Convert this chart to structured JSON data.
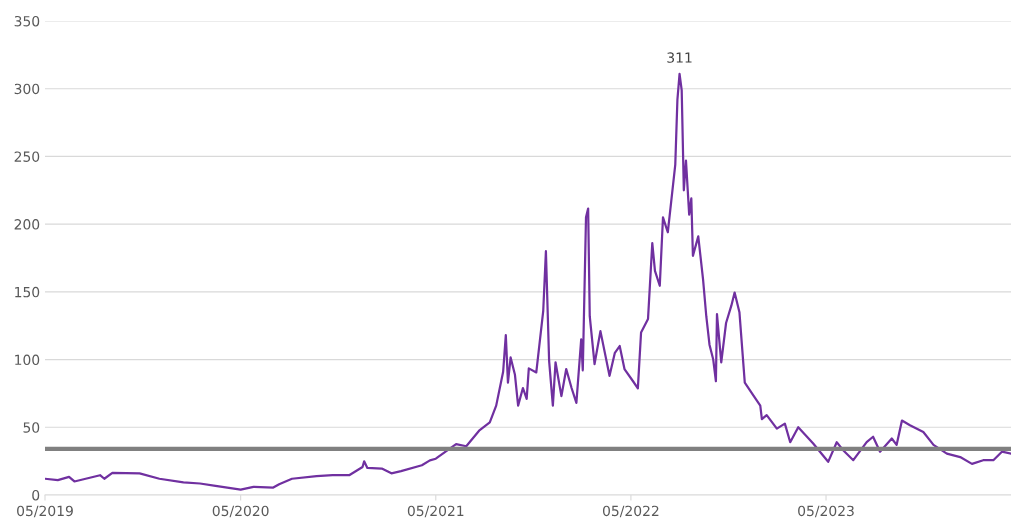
{
  "chart_data": {
    "type": "line",
    "x": [
      "2019-05-01",
      "2019-05-25",
      "2019-06-15",
      "2019-06-25",
      "2019-08-12",
      "2019-08-20",
      "2019-09-04",
      "2019-10-25",
      "2019-12-01",
      "2020-01-15",
      "2020-02-15",
      "2020-03-15",
      "2020-05-01",
      "2020-05-25",
      "2020-07-01",
      "2020-07-12",
      "2020-08-05",
      "2020-09-20",
      "2020-10-20",
      "2020-11-20",
      "2020-12-15",
      "2020-12-18",
      "2020-12-24",
      "2021-01-20",
      "2021-02-07",
      "2021-02-25",
      "2021-04-05",
      "2021-04-20",
      "2021-05-01",
      "2021-06-08",
      "2021-06-27",
      "2021-07-21",
      "2021-08-10",
      "2021-08-22",
      "2021-09-04",
      "2021-09-09",
      "2021-09-13",
      "2021-09-18",
      "2021-09-26",
      "2021-10-02",
      "2021-10-11",
      "2021-10-18",
      "2021-10-22",
      "2021-11-05",
      "2021-11-18",
      "2021-11-23",
      "2021-11-29",
      "2021-12-06",
      "2021-12-11",
      "2021-12-22",
      "2021-12-31",
      "2022-01-10",
      "2022-01-19",
      "2022-01-28",
      "2022-01-31",
      "2022-02-06",
      "2022-02-10",
      "2022-02-13",
      "2022-02-22",
      "2022-03-05",
      "2022-03-22",
      "2022-04-01",
      "2022-04-10",
      "2022-04-19",
      "2022-05-05",
      "2022-05-14",
      "2022-05-20",
      "2022-06-02",
      "2022-06-10",
      "2022-06-15",
      "2022-06-24",
      "2022-06-30",
      "2022-07-09",
      "2022-07-23",
      "2022-07-27",
      "2022-07-31",
      "2022-08-04",
      "2022-08-08",
      "2022-08-12",
      "2022-08-18",
      "2022-08-22",
      "2022-08-25",
      "2022-09-04",
      "2022-09-13",
      "2022-09-19",
      "2022-09-25",
      "2022-10-02",
      "2022-10-07",
      "2022-10-09",
      "2022-10-17",
      "2022-10-26",
      "2022-11-05",
      "2022-11-11",
      "2022-11-20",
      "2022-11-30",
      "2022-12-16",
      "2022-12-29",
      "2023-01-01",
      "2023-01-10",
      "2023-01-29",
      "2023-02-13",
      "2023-02-23",
      "2023-03-10",
      "2023-04-07",
      "2023-05-05",
      "2023-05-21",
      "2023-06-02",
      "2023-06-21",
      "2023-07-16",
      "2023-07-28",
      "2023-08-10",
      "2023-09-01",
      "2023-09-10",
      "2023-09-20",
      "2023-10-05",
      "2023-10-30",
      "2023-11-18",
      "2023-12-13",
      "2024-01-07",
      "2024-01-29",
      "2024-02-19",
      "2024-03-09",
      "2024-03-25",
      "2024-04-11"
    ],
    "series": [
      {
        "color": "#7030a0",
        "values": [
          12,
          11,
          13.4,
          10,
          14.6,
          12,
          16.3,
          16,
          12,
          9.3,
          8.5,
          6.8,
          4,
          6,
          5.5,
          8,
          12,
          14,
          14.6,
          14.6,
          20.7,
          24.9,
          20,
          19.5,
          16,
          17.6,
          22,
          25.6,
          26.8,
          37.6,
          36,
          47.5,
          53.6,
          66,
          91,
          118,
          83,
          101.6,
          89,
          66,
          79,
          71,
          93.5,
          90.5,
          136,
          180,
          99,
          66,
          98,
          73,
          93,
          79,
          68,
          115,
          92,
          205,
          211.5,
          132,
          96.7,
          121,
          88,
          105,
          110,
          93,
          84,
          78.7,
          120,
          130,
          186,
          165.5,
          154.5,
          205,
          194,
          244,
          292,
          311,
          299,
          225,
          247,
          207,
          219,
          176.6,
          191,
          159,
          132,
          111,
          100,
          84,
          133.5,
          98,
          127,
          140,
          149.5,
          135,
          83,
          73.5,
          66,
          56,
          59,
          49,
          52.7,
          39,
          50,
          38,
          24.5,
          39,
          33,
          25.7,
          39,
          43,
          32,
          41.7,
          37,
          55,
          51.5,
          46.5,
          37,
          30.6,
          28,
          23,
          25.7,
          25.7,
          32,
          30.6
        ]
      }
    ],
    "xlim": [
      "2019-05-01",
      "2024-04-11"
    ],
    "xticks": [
      {
        "value": "2019-05-01",
        "label": "05/2019"
      },
      {
        "value": "2020-05-01",
        "label": "05/2020"
      },
      {
        "value": "2021-05-01",
        "label": "05/2021"
      },
      {
        "value": "2022-05-01",
        "label": "05/2022"
      },
      {
        "value": "2023-05-01",
        "label": "05/2023"
      }
    ],
    "ylim": [
      0,
      350
    ],
    "yticks": [
      0,
      50,
      100,
      150,
      200,
      250,
      300,
      350
    ],
    "grid": "y",
    "legend": false,
    "marker": "none",
    "line_style": "solid",
    "ref_lines": [
      {
        "axis": "y",
        "value": 34,
        "color": "#808080",
        "line_style": "solid"
      }
    ],
    "annotations": [
      {
        "text": "311",
        "x": "2022-07-31",
        "y": 311
      }
    ]
  }
}
